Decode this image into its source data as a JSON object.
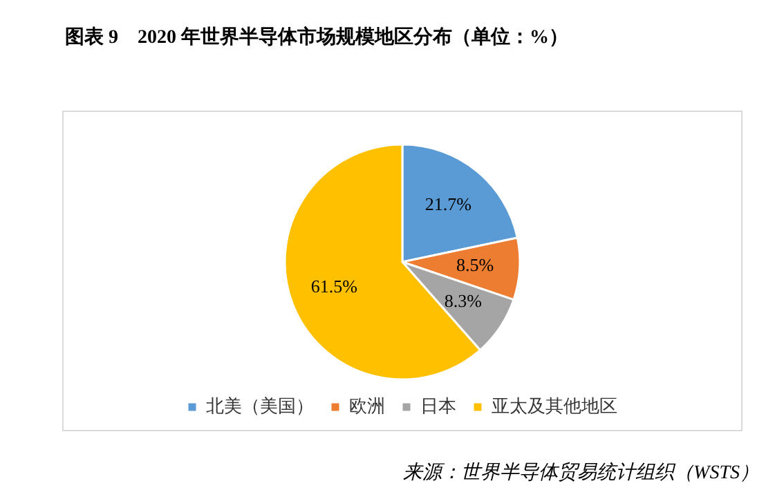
{
  "chart_data": {
    "type": "pie",
    "title": "图表 9　2020 年世界半导体市场规模地区分布（单位：%）",
    "categories": [
      "北美（美国）",
      "欧洲",
      "日本",
      "亚太及其他地区"
    ],
    "values": [
      21.7,
      8.5,
      8.3,
      61.5
    ],
    "value_labels": [
      "21.7%",
      "8.5%",
      "8.3%",
      "61.5%"
    ],
    "colors": [
      "#5b9bd5",
      "#ed7d31",
      "#a5a5a5",
      "#ffc000"
    ],
    "legend": "bottom",
    "annotations": [
      "来源：世界半导体贸易统计组织（WSTS）"
    ]
  }
}
